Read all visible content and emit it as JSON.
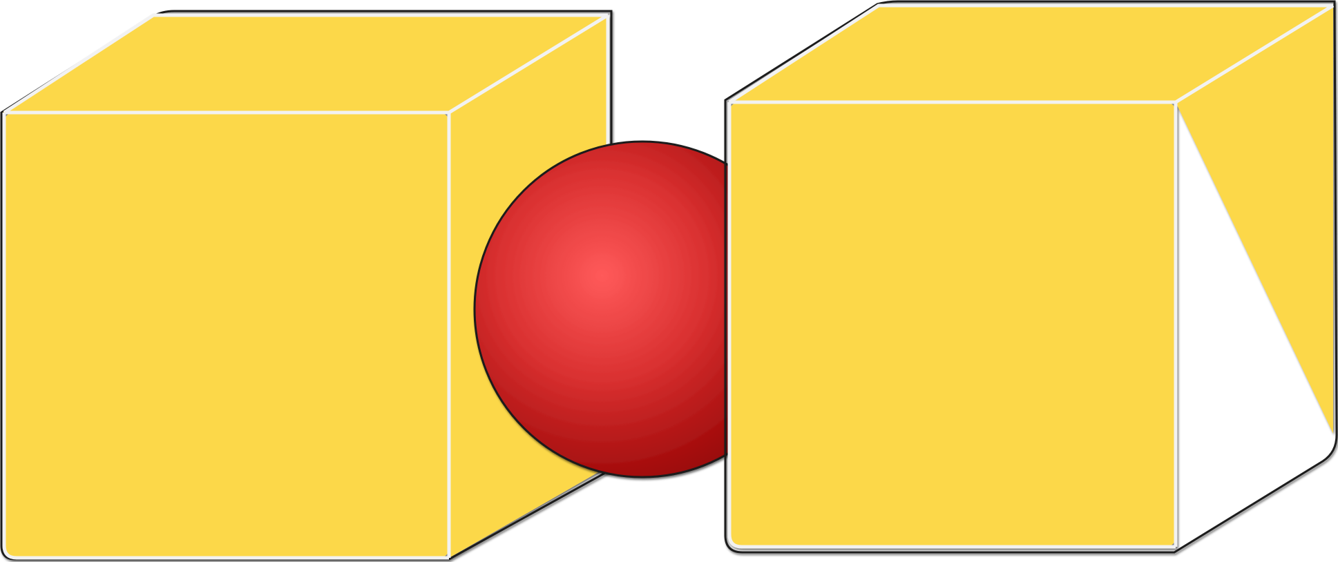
{
  "scene": {
    "background": "#ffffff",
    "edge_color": "#f2f2f2",
    "outline_color": "#1a1a1a"
  },
  "objects": [
    {
      "kind": "cube",
      "name": "left-cube",
      "face_color": "#fcd84a"
    },
    {
      "kind": "sphere",
      "name": "center-sphere",
      "highlight_color": "#ff5a5a",
      "mid_color": "#d93030",
      "shadow_color": "#8f0000"
    },
    {
      "kind": "cube",
      "name": "right-cube",
      "face_color": "#fcd84a"
    }
  ]
}
